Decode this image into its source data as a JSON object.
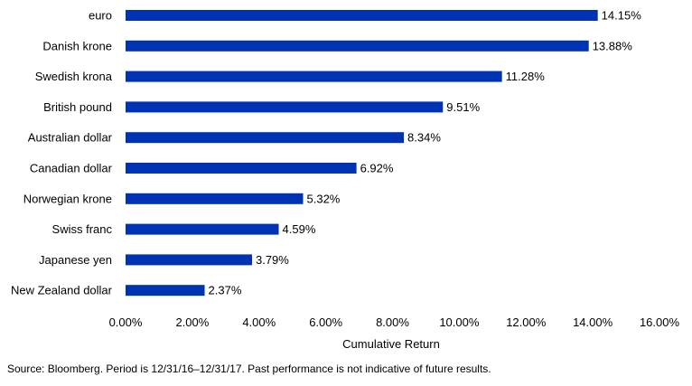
{
  "chart_data": {
    "type": "bar",
    "orientation": "horizontal",
    "categories": [
      "euro",
      "Danish krone",
      "Swedish krona",
      "British pound",
      "Australian dollar",
      "Canadian dollar",
      "Norwegian krone",
      "Swiss franc",
      "Japanese yen",
      "New Zealand dollar"
    ],
    "values": [
      14.15,
      13.88,
      11.28,
      9.51,
      8.34,
      6.92,
      5.32,
      4.59,
      3.79,
      2.37
    ],
    "data_labels": [
      "14.15%",
      "13.88%",
      "11.28%",
      "9.51%",
      "8.34%",
      "6.92%",
      "5.32%",
      "4.59%",
      "3.79%",
      "2.37%"
    ],
    "xlabel": "Cumulative Return",
    "ylabel": "",
    "xlim": [
      0,
      16
    ],
    "x_ticks": [
      0,
      2,
      4,
      6,
      8,
      10,
      12,
      14,
      16
    ],
    "x_tick_labels": [
      "0.00%",
      "2.00%",
      "4.00%",
      "6.00%",
      "8.00%",
      "10.00%",
      "12.00%",
      "14.00%",
      "16.00%"
    ],
    "grid": false,
    "legend": "none",
    "bar_color": "#0033b3"
  },
  "footnote": "Source: Bloomberg. Period is 12/31/16–12/31/17. Past performance is not indicative of future results."
}
